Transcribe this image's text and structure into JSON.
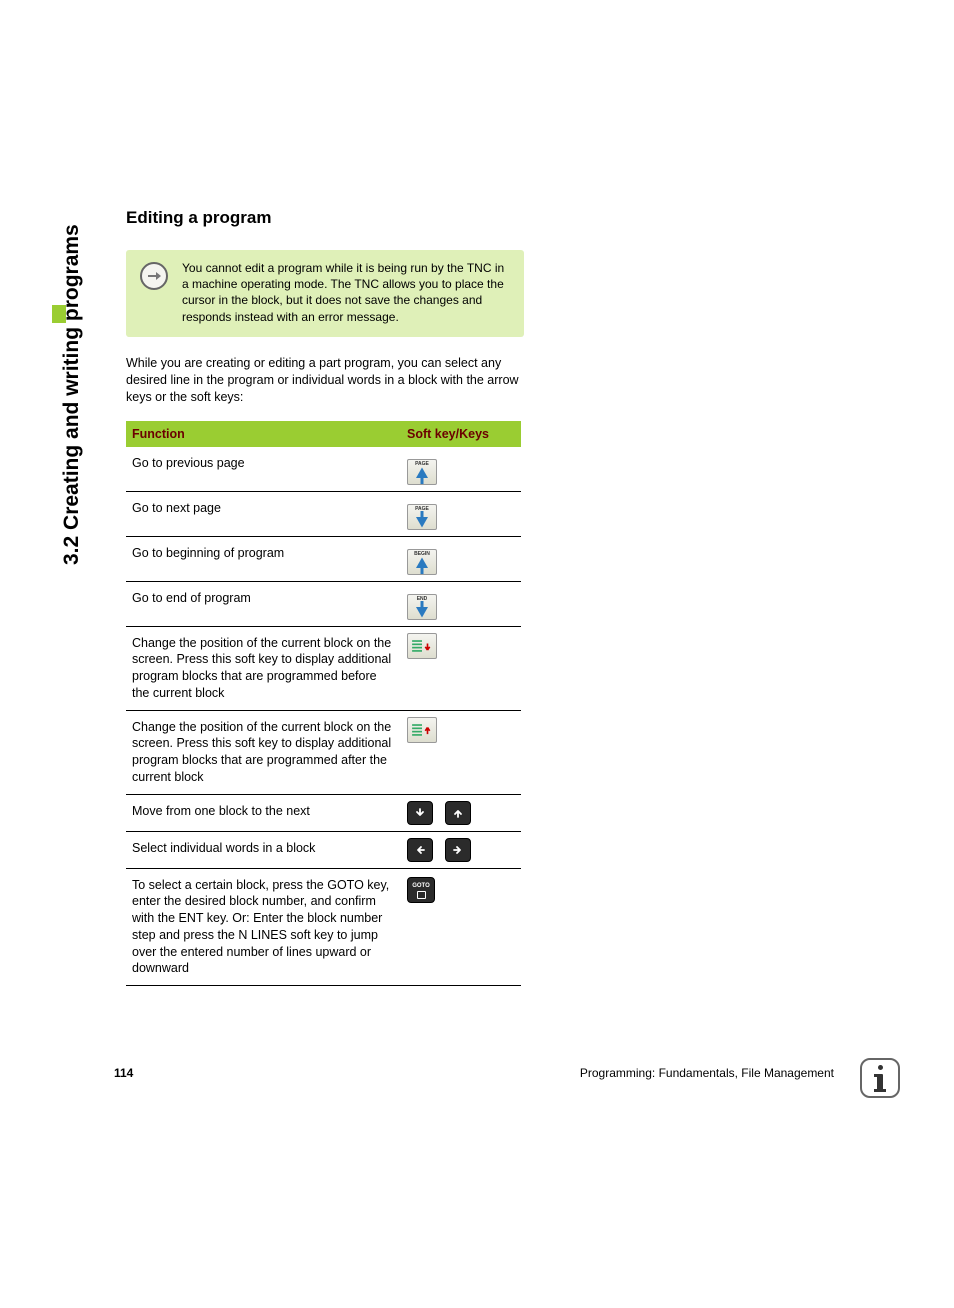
{
  "colors": {
    "accent_green": "#9acd32",
    "callout_bg": "#dff0b8",
    "header_text": "#6b0000",
    "rule": "#000000",
    "hardkey_bg": "#2b2b2b",
    "softkey_bg_top": "#f4f4f0",
    "softkey_bg_bottom": "#dedecf"
  },
  "side_tab": "3.2 Creating and writing programs",
  "heading": "Editing a program",
  "callout": {
    "icon": "arrow-right-circle",
    "text": "You cannot edit a program while it is being run by the TNC in a machine operating mode. The TNC allows you to place the cursor in the block, but it does not save the changes and responds instead with an error message."
  },
  "intro_para": "While you are creating or editing a part program, you can select any desired line in the program or individual words in a block with the arrow keys or the soft keys:",
  "table": {
    "columns": [
      "Function",
      "Soft key/Keys"
    ],
    "rows": [
      {
        "func": "Go to previous page",
        "keys": [
          {
            "type": "softkey",
            "label": "PAGE",
            "icon": "arrow-up"
          }
        ]
      },
      {
        "func": "Go to next page",
        "keys": [
          {
            "type": "softkey",
            "label": "PAGE",
            "icon": "arrow-down"
          }
        ]
      },
      {
        "func": "Go to beginning of program",
        "keys": [
          {
            "type": "softkey",
            "label": "BEGIN",
            "icon": "arrow-up"
          }
        ]
      },
      {
        "func": "Go to end of program",
        "keys": [
          {
            "type": "softkey",
            "label": "END",
            "icon": "arrow-down"
          }
        ]
      },
      {
        "func": "Change the position of the current block on the screen. Press this soft key to display additional program blocks that are programmed before the current block",
        "keys": [
          {
            "type": "softkey",
            "label": "",
            "icon": "list-down"
          }
        ]
      },
      {
        "func": "Change the position of the current block on the screen. Press this soft key to display additional program blocks that are programmed after the current block",
        "keys": [
          {
            "type": "softkey",
            "label": "",
            "icon": "list-up"
          }
        ]
      },
      {
        "func": "Move from one block to the next",
        "keys": [
          {
            "type": "hardkey",
            "icon": "arrow-down"
          },
          {
            "type": "hardkey",
            "icon": "arrow-up"
          }
        ]
      },
      {
        "func": "Select individual words in a block",
        "keys": [
          {
            "type": "hardkey",
            "icon": "arrow-left"
          },
          {
            "type": "hardkey",
            "icon": "arrow-right"
          }
        ]
      },
      {
        "func": "To select a certain block, press the GOTO key, enter the desired block number, and confirm with the ENT key. Or: Enter the block number step and press the N LINES soft key to jump over the entered number of lines upward or downward",
        "keys": [
          {
            "type": "hardkey",
            "icon": "goto",
            "label": "GOTO"
          }
        ]
      }
    ]
  },
  "footer": {
    "page_number": "114",
    "chapter": "Programming: Fundamentals, File Management"
  },
  "info_icon": "i"
}
